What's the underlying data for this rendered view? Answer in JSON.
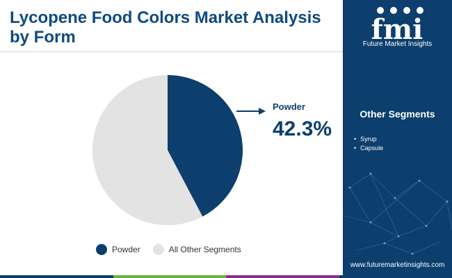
{
  "header": {
    "title": "Lycopene Food Colors Market Analysis by Form"
  },
  "brand": {
    "logo_text": "fmi",
    "name": "Future Market Insights",
    "website": "www.futuremarketinsights.com"
  },
  "sidebar": {
    "title": "Other Segments",
    "items": [
      "Syrup",
      "Capsule"
    ]
  },
  "chart_data": {
    "type": "pie",
    "slices": [
      {
        "label": "Powder",
        "value": 42.3,
        "color": "#0c3e6e"
      },
      {
        "label": "All Other Segments",
        "value": 57.7,
        "color": "#e3e3e3"
      }
    ],
    "annotation": {
      "label": "Powder",
      "value_text": "42.3%"
    },
    "legend": [
      "Powder",
      "All Other Segments"
    ],
    "legend_position": "bottom"
  },
  "colors": {
    "accent": "#0c3e6e",
    "title": "#0e4a7f",
    "bottom_bar": [
      "#0c3e6e",
      "#67b33b",
      "#8a2f8f",
      "#0c3e6e"
    ]
  }
}
